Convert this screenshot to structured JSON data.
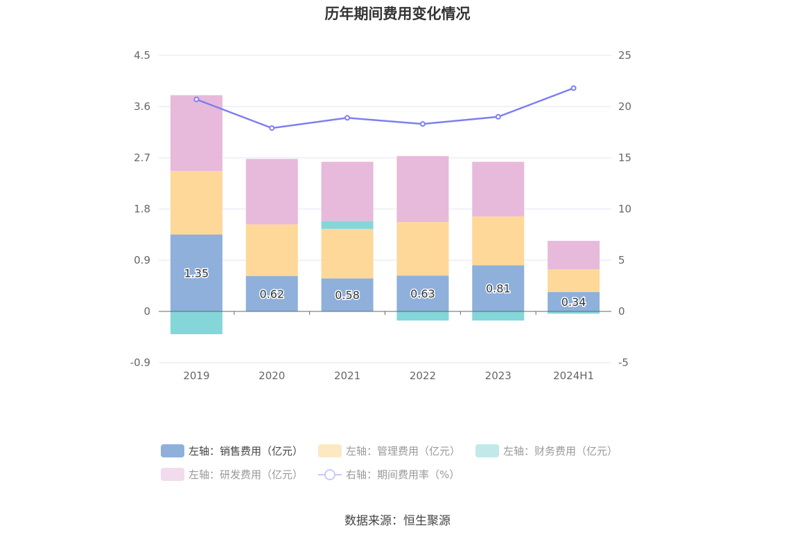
{
  "title": "历年期间费用变化情况",
  "source": "数据来源：恒生聚源",
  "colors": {
    "sales": "#8eb0db",
    "admin": "#fed899",
    "finance": "#84d6d8",
    "rnd": "#e7b9da",
    "rate": "#7b7ff0"
  },
  "legend": [
    {
      "label": "左轴：销售费用（亿元）",
      "color": "#8eb0db",
      "kind": "bar",
      "faded": false
    },
    {
      "label": "左轴：管理费用（亿元）",
      "color": "#fde8c4",
      "kind": "bar",
      "faded": true
    },
    {
      "label": "左轴：财务费用（亿元）",
      "color": "#c3e8ea",
      "kind": "bar",
      "faded": true
    },
    {
      "label": "左轴：研发费用（亿元）",
      "color": "#f2dbec",
      "kind": "bar",
      "faded": true
    },
    {
      "label": "右轴：期间费用率（%）",
      "color": "#7b7ff0",
      "kind": "line",
      "faded": true
    }
  ],
  "chart_data": {
    "type": "bar",
    "stacked": true,
    "categories": [
      "2019",
      "2020",
      "2021",
      "2022",
      "2023",
      "2024H1"
    ],
    "series": [
      {
        "name": "左轴：销售费用（亿元）",
        "axis": "left",
        "values": [
          1.35,
          0.62,
          0.58,
          0.63,
          0.81,
          0.34
        ],
        "labels": [
          "1.35",
          "0.62",
          "0.58",
          "0.63",
          "0.81",
          "0.34"
        ]
      },
      {
        "name": "左轴：管理费用（亿元）",
        "axis": "left",
        "values": [
          1.12,
          0.91,
          0.87,
          0.94,
          0.86,
          0.4
        ]
      },
      {
        "name": "左轴：财务费用（亿元）",
        "axis": "left",
        "values": [
          -0.4,
          0.0,
          0.14,
          -0.16,
          -0.16,
          -0.04
        ]
      },
      {
        "name": "左轴：研发费用（亿元）",
        "axis": "left",
        "values": [
          1.33,
          1.15,
          1.04,
          1.16,
          0.96,
          0.5
        ]
      },
      {
        "name": "右轴：期间费用率（%）",
        "axis": "right",
        "type": "line",
        "values": [
          20.7,
          17.9,
          18.9,
          18.3,
          19.0,
          21.8
        ]
      }
    ],
    "left_axis": {
      "ticks": [
        "4.5",
        "3.6",
        "2.7",
        "1.8",
        "0.9",
        "0",
        "-0.9"
      ],
      "range": [
        -0.9,
        4.5
      ]
    },
    "right_axis": {
      "ticks": [
        "25",
        "20",
        "15",
        "10",
        "5",
        "0",
        "-5"
      ],
      "range": [
        -5,
        25
      ]
    },
    "grid": true,
    "legend_position": "bottom"
  }
}
